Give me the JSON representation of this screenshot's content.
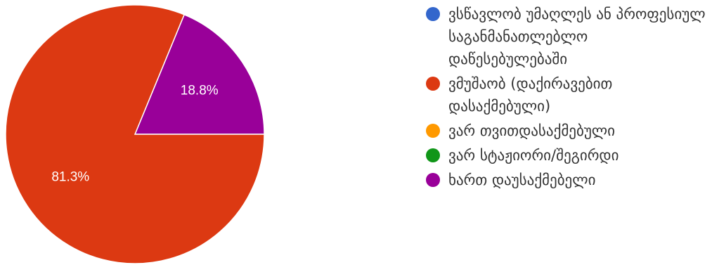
{
  "chart_data": {
    "type": "pie",
    "title": "",
    "legend_position": "right",
    "categories": [
      "ვსწავლობ უმაღლეს ან პროფესიულ საგანმანათლებლო დაწესებულებაში",
      "ვმუშაობ (დაქირავებით დასაქმებული)",
      "ვარ თვითდასაქმებული",
      "ვარ სტაჟიორი/შეგირდი",
      "ხართ დაუსაქმებელი"
    ],
    "values": [
      0,
      81.3,
      0,
      0,
      18.8
    ],
    "value_labels": [
      "",
      "81.3%",
      "",
      "",
      "18.8%"
    ],
    "colors": [
      "#3366cc",
      "#dc3912",
      "#ff9900",
      "#109618",
      "#990099"
    ]
  }
}
